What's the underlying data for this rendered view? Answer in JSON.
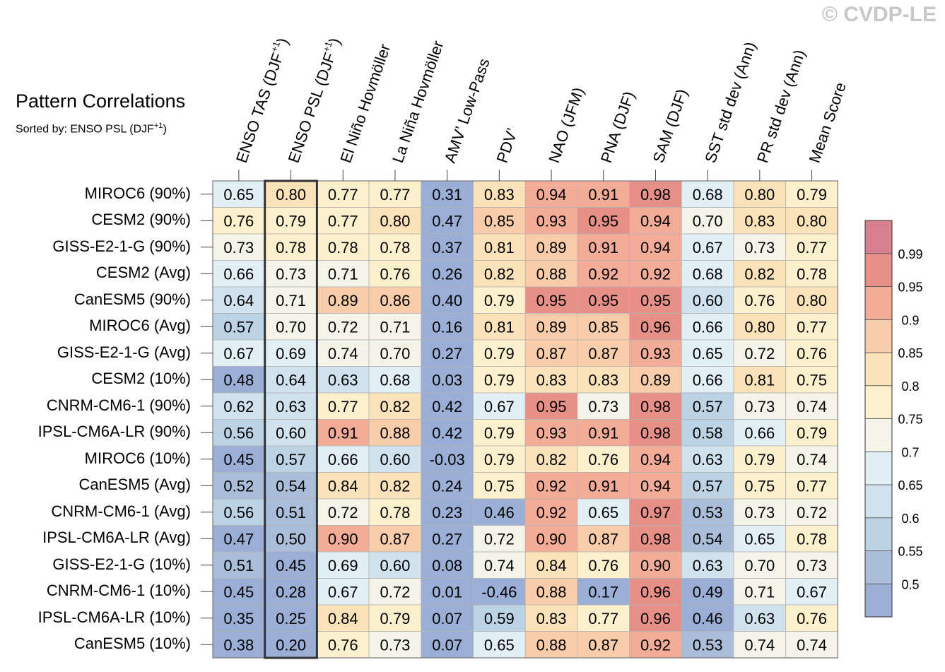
{
  "watermark": {
    "symbol": "©",
    "text": "CVDP-LE"
  },
  "chart_data": {
    "type": "heatmap",
    "title": "Pattern Correlations",
    "subtitle_prefix": "Sorted by: ENSO PSL (DJF",
    "subtitle_sup": "+1",
    "subtitle_suffix": ")",
    "sorted_column_index": 1,
    "columns": [
      {
        "label": "ENSO TAS (DJF",
        "sup": "+1",
        "suffix": ")"
      },
      {
        "label": "ENSO PSL (DJF",
        "sup": "+1",
        "suffix": ")"
      },
      {
        "label": "El Niño Hovmöller",
        "sup": "",
        "suffix": ""
      },
      {
        "label": "La Niña Hovmöller",
        "sup": "",
        "suffix": ""
      },
      {
        "label": "AMV’ Low-Pass",
        "sup": "",
        "suffix": ""
      },
      {
        "label": "PDV’",
        "sup": "",
        "suffix": ""
      },
      {
        "label": "NAO (JFM)",
        "sup": "",
        "suffix": ""
      },
      {
        "label": "PNA (DJF)",
        "sup": "",
        "suffix": ""
      },
      {
        "label": "SAM (DJF)",
        "sup": "",
        "suffix": ""
      },
      {
        "label": "SST std dev (Ann)",
        "sup": "",
        "suffix": ""
      },
      {
        "label": "PR std dev (Ann)",
        "sup": "",
        "suffix": ""
      },
      {
        "label": "Mean Score",
        "sup": "",
        "suffix": ""
      }
    ],
    "rows": [
      "MIROC6 (90%)",
      "CESM2 (90%)",
      "GISS-E2-1-G (90%)",
      "CESM2 (Avg)",
      "CanESM5 (90%)",
      "MIROC6 (Avg)",
      "GISS-E2-1-G (Avg)",
      "CESM2 (10%)",
      "CNRM-CM6-1 (90%)",
      "IPSL-CM6A-LR (90%)",
      "MIROC6 (10%)",
      "CanESM5 (Avg)",
      "CNRM-CM6-1 (Avg)",
      "IPSL-CM6A-LR (Avg)",
      "GISS-E2-1-G (10%)",
      "CNRM-CM6-1 (10%)",
      "IPSL-CM6A-LR (10%)",
      "CanESM5 (10%)"
    ],
    "values": [
      [
        "0.65",
        "0.80",
        "0.77",
        "0.77",
        "0.31",
        "0.83",
        "0.94",
        "0.91",
        "0.98",
        "0.68",
        "0.80",
        "0.79"
      ],
      [
        "0.76",
        "0.79",
        "0.77",
        "0.80",
        "0.47",
        "0.85",
        "0.93",
        "0.95",
        "0.94",
        "0.70",
        "0.83",
        "0.80"
      ],
      [
        "0.73",
        "0.78",
        "0.78",
        "0.78",
        "0.37",
        "0.81",
        "0.89",
        "0.91",
        "0.94",
        "0.67",
        "0.73",
        "0.77"
      ],
      [
        "0.66",
        "0.73",
        "0.71",
        "0.76",
        "0.26",
        "0.82",
        "0.88",
        "0.92",
        "0.92",
        "0.68",
        "0.82",
        "0.78"
      ],
      [
        "0.64",
        "0.71",
        "0.89",
        "0.86",
        "0.40",
        "0.79",
        "0.95",
        "0.95",
        "0.95",
        "0.60",
        "0.76",
        "0.80"
      ],
      [
        "0.57",
        "0.70",
        "0.72",
        "0.71",
        "0.16",
        "0.81",
        "0.89",
        "0.85",
        "0.96",
        "0.66",
        "0.80",
        "0.77"
      ],
      [
        "0.67",
        "0.69",
        "0.74",
        "0.70",
        "0.27",
        "0.79",
        "0.87",
        "0.87",
        "0.93",
        "0.65",
        "0.72",
        "0.76"
      ],
      [
        "0.48",
        "0.64",
        "0.63",
        "0.68",
        "0.03",
        "0.79",
        "0.83",
        "0.83",
        "0.89",
        "0.66",
        "0.81",
        "0.75"
      ],
      [
        "0.62",
        "0.63",
        "0.77",
        "0.82",
        "0.42",
        "0.67",
        "0.95",
        "0.73",
        "0.98",
        "0.57",
        "0.73",
        "0.74"
      ],
      [
        "0.56",
        "0.60",
        "0.91",
        "0.88",
        "0.42",
        "0.79",
        "0.93",
        "0.91",
        "0.98",
        "0.58",
        "0.66",
        "0.79"
      ],
      [
        "0.45",
        "0.57",
        "0.66",
        "0.60",
        "-0.03",
        "0.79",
        "0.82",
        "0.76",
        "0.94",
        "0.63",
        "0.79",
        "0.74"
      ],
      [
        "0.52",
        "0.54",
        "0.84",
        "0.82",
        "0.24",
        "0.75",
        "0.92",
        "0.91",
        "0.94",
        "0.57",
        "0.75",
        "0.77"
      ],
      [
        "0.56",
        "0.51",
        "0.72",
        "0.78",
        "0.23",
        "0.46",
        "0.92",
        "0.65",
        "0.97",
        "0.53",
        "0.73",
        "0.72"
      ],
      [
        "0.47",
        "0.50",
        "0.90",
        "0.87",
        "0.27",
        "0.72",
        "0.90",
        "0.87",
        "0.98",
        "0.54",
        "0.65",
        "0.78"
      ],
      [
        "0.51",
        "0.45",
        "0.69",
        "0.60",
        "0.08",
        "0.74",
        "0.84",
        "0.76",
        "0.90",
        "0.63",
        "0.70",
        "0.73"
      ],
      [
        "0.45",
        "0.28",
        "0.67",
        "0.72",
        "0.01",
        "-0.46",
        "0.88",
        "0.17",
        "0.96",
        "0.49",
        "0.71",
        "0.67"
      ],
      [
        "0.35",
        "0.25",
        "0.84",
        "0.79",
        "0.07",
        "0.59",
        "0.83",
        "0.77",
        "0.96",
        "0.46",
        "0.63",
        "0.76"
      ],
      [
        "0.38",
        "0.20",
        "0.76",
        "0.73",
        "0.07",
        "0.65",
        "0.88",
        "0.87",
        "0.92",
        "0.53",
        "0.74",
        "0.74"
      ]
    ],
    "colorbar": {
      "levels": [
        0.5,
        0.55,
        0.6,
        0.65,
        0.7,
        0.75,
        0.8,
        0.85,
        0.9,
        0.95,
        0.99
      ],
      "labels": [
        "0.5",
        "0.55",
        "0.6",
        "0.65",
        "0.7",
        "0.75",
        "0.8",
        "0.85",
        "0.9",
        "0.95",
        "0.99"
      ],
      "colors": [
        "#9aaed6",
        "#aabed9",
        "#bcd3e6",
        "#cfe2ee",
        "#e2eff4",
        "#f4f4e8",
        "#fdf0cd",
        "#fbe2b8",
        "#f9ccaa",
        "#f3ac98",
        "#e79088",
        "#d7808f"
      ],
      "placement": "right"
    }
  }
}
